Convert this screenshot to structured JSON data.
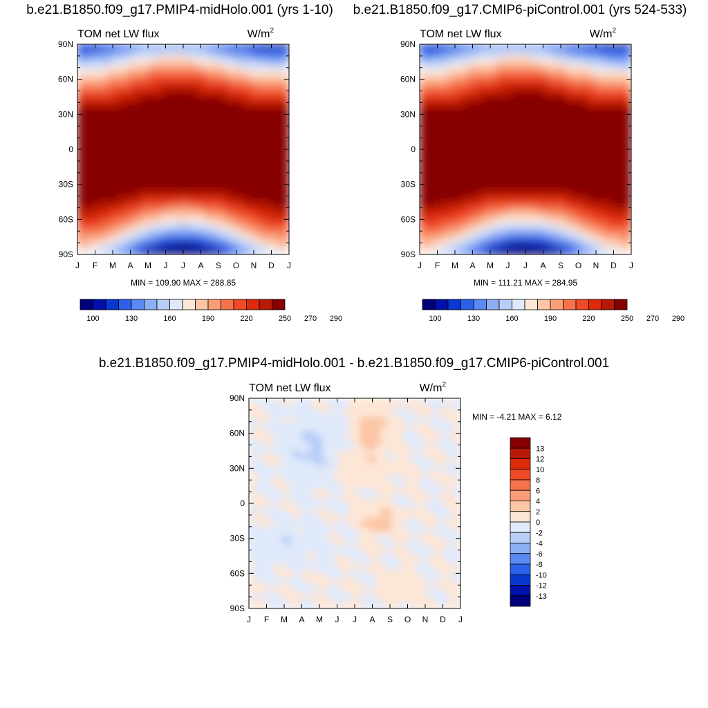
{
  "colors": {
    "palette": [
      "#00007a",
      "#0010a8",
      "#0838d0",
      "#2a60ea",
      "#5a8af2",
      "#8caff4",
      "#b8cef7",
      "#dfe9fa",
      "#fde6d6",
      "#fcc6a6",
      "#fa9e77",
      "#f6724b",
      "#ee4a25",
      "#dc2a0a",
      "#b81806",
      "#860000"
    ]
  },
  "chart_data": [
    {
      "id": "panel1",
      "type": "heatmap",
      "title": "b.e21.B1850.f09_g17.PMIP4-midHolo.001 (yrs 1-10)",
      "left_label": "TOM net LW flux",
      "units_base": "W/m",
      "units_sup": "2",
      "x_ticks": [
        "J",
        "F",
        "M",
        "A",
        "M",
        "J",
        "J",
        "A",
        "S",
        "O",
        "N",
        "D",
        "J"
      ],
      "y_ticks": [
        "90N",
        "60N",
        "30N",
        "0",
        "30S",
        "60S",
        "90S"
      ],
      "ylim": [
        -90,
        90
      ],
      "stats": "MIN = 109.90 MAX = 288.85",
      "levels": [
        100,
        110,
        120,
        130,
        140,
        150,
        160,
        170,
        180,
        190,
        200,
        210,
        220,
        230,
        240,
        250,
        260,
        270,
        280,
        290
      ],
      "colorbar_labels": [
        "100",
        "130",
        "160",
        "190",
        "220",
        "250",
        "270",
        "290"
      ],
      "colorbar_orientation": "horizontal",
      "min": 109.9,
      "max": 288.85
    },
    {
      "id": "panel2",
      "type": "heatmap",
      "title": "b.e21.B1850.f09_g17.CMIP6-piControl.001 (yrs 524-533)",
      "left_label": "TOM net LW flux",
      "units_base": "W/m",
      "units_sup": "2",
      "x_ticks": [
        "J",
        "F",
        "M",
        "A",
        "M",
        "J",
        "J",
        "A",
        "S",
        "O",
        "N",
        "D",
        "J"
      ],
      "y_ticks": [
        "90N",
        "60N",
        "30N",
        "0",
        "30S",
        "60S",
        "90S"
      ],
      "ylim": [
        -90,
        90
      ],
      "stats": "MIN = 111.21 MAX = 284.95",
      "levels": [
        100,
        110,
        120,
        130,
        140,
        150,
        160,
        170,
        180,
        190,
        200,
        210,
        220,
        230,
        240,
        250,
        260,
        270,
        280,
        290
      ],
      "colorbar_labels": [
        "100",
        "130",
        "160",
        "190",
        "220",
        "250",
        "270",
        "290"
      ],
      "colorbar_orientation": "horizontal",
      "min": 111.21,
      "max": 284.95
    },
    {
      "id": "panel3",
      "type": "heatmap",
      "title": "b.e21.B1850.f09_g17.PMIP4-midHolo.001 - b.e21.B1850.f09_g17.CMIP6-piControl.001",
      "left_label": "TOM net LW flux",
      "units_base": "W/m",
      "units_sup": "2",
      "x_ticks": [
        "J",
        "F",
        "M",
        "A",
        "M",
        "J",
        "J",
        "A",
        "S",
        "O",
        "N",
        "D",
        "J"
      ],
      "y_ticks": [
        "90N",
        "60N",
        "30N",
        "0",
        "30S",
        "60S",
        "90S"
      ],
      "ylim": [
        -90,
        90
      ],
      "stats": "MIN =  -4.21 MAX =   6.12",
      "levels": [
        -13,
        -12,
        -10,
        -8,
        -6,
        -4,
        -2,
        0,
        2,
        4,
        6,
        8,
        10,
        12,
        13
      ],
      "colorbar_labels": [
        "13",
        "12",
        "10",
        "8",
        "6",
        "4",
        "2",
        "0",
        "-2",
        "-4",
        "-6",
        "-8",
        "-10",
        "-12",
        "-13"
      ],
      "colorbar_orientation": "vertical",
      "min": -4.21,
      "max": 6.12
    }
  ]
}
